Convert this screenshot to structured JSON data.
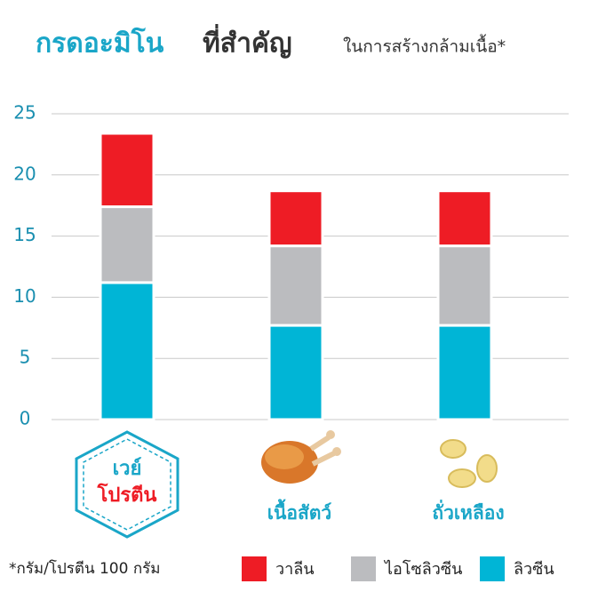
{
  "chart_data": {
    "type": "stacked-bar",
    "title": [
      "กรดอะมิโน",
      "ที่สำคัญ",
      "ในการสร้างกล้ามเนื้อ*"
    ],
    "categories": [
      [
        "เวย์",
        "โปรตีน"
      ],
      [
        "เนื้อสัตว์"
      ],
      [
        "ถั่วเหลือง"
      ]
    ],
    "series": [
      {
        "name": "วาลีน",
        "color": "#ee1c25",
        "values": [
          6.0,
          4.5,
          4.5
        ]
      },
      {
        "name": "ไอโซลิวซีน",
        "color": "#bbbcbf",
        "values": [
          6.2,
          6.5,
          6.5
        ]
      },
      {
        "name": "ลิวซีน",
        "color": "#00b5d6",
        "values": [
          11.2,
          7.7,
          7.7
        ]
      }
    ],
    "ylim": [
      0,
      25
    ],
    "yticks": [
      0,
      5,
      10,
      15,
      20,
      25
    ],
    "grid": true,
    "footnote": "*กรัม/โปรตีน 100 กรัม"
  }
}
